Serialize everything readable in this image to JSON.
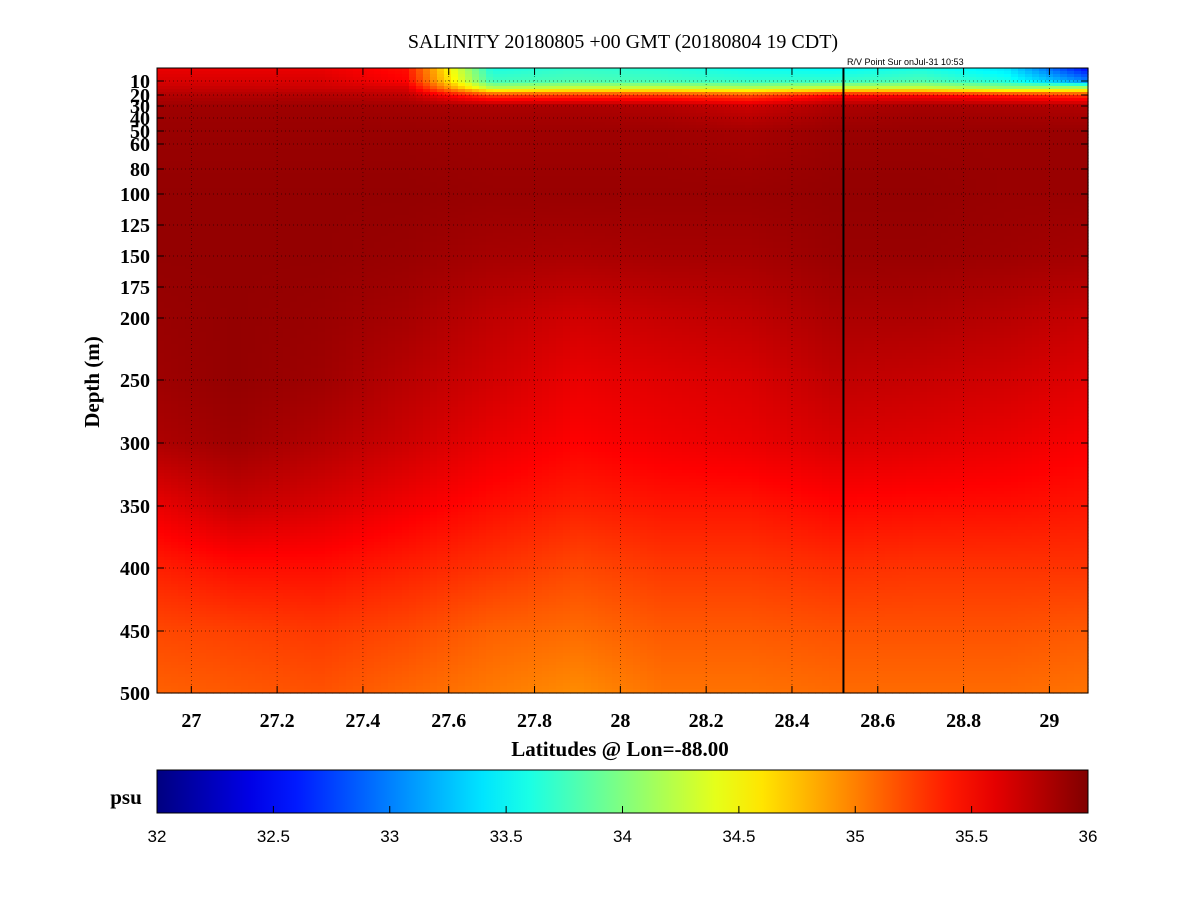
{
  "chart_data": {
    "type": "heatmap",
    "title": "SALINITY 20180805 +00 GMT (20180804 19 CDT)",
    "annotation": "R/V Point Sur onJul-31 10:53",
    "xlabel": "Latitudes @ Lon=-88.00",
    "ylabel": "Depth (m)",
    "xlim": [
      26.92,
      29.09
    ],
    "ylim": [
      5,
      500
    ],
    "y_scale": "custom non-linear (finer near surface)",
    "grid": true,
    "x_ticks": [
      27,
      27.2,
      27.4,
      27.6,
      27.8,
      28,
      28.2,
      28.4,
      28.6,
      28.8,
      29
    ],
    "x_tick_labels": [
      "27",
      "27.2",
      "27.4",
      "27.6",
      "27.8",
      "28",
      "28.2",
      "28.4",
      "28.6",
      "28.8",
      "29"
    ],
    "y_ticks": [
      10,
      20,
      30,
      40,
      50,
      60,
      80,
      100,
      125,
      150,
      175,
      200,
      250,
      300,
      350,
      400,
      450,
      500
    ],
    "y_tick_labels": [
      "10",
      "20",
      "30",
      "40",
      "50",
      "60",
      "80",
      "100",
      "125",
      "150",
      "175",
      "200",
      "250",
      "300",
      "350",
      "400",
      "450",
      "500"
    ],
    "vertical_marker_latitude": 28.52,
    "colorbar": {
      "label": "psu",
      "range": [
        32,
        36
      ],
      "ticks": [
        32,
        32.5,
        33,
        33.5,
        34,
        34.5,
        35,
        35.5,
        36
      ],
      "tick_labels": [
        "32",
        "32.5",
        "33",
        "33.5",
        "34",
        "34.5",
        "35",
        "35.5",
        "36"
      ],
      "colormap": "jet"
    },
    "grid_lat": [
      26.92,
      27.1,
      27.3,
      27.5,
      27.7,
      27.9,
      28.1,
      28.3,
      28.5,
      28.7,
      28.9,
      29.09
    ],
    "grid_depth": [
      5,
      10,
      15,
      20,
      30,
      50,
      100,
      150,
      200,
      250,
      300,
      350,
      400,
      450,
      500
    ],
    "salinity": [
      [
        35.58,
        35.58,
        35.58,
        35.45,
        33.6,
        33.7,
        33.65,
        33.55,
        33.5,
        33.6,
        33.4,
        32.5
      ],
      [
        35.65,
        35.65,
        35.65,
        35.5,
        33.75,
        33.8,
        33.75,
        33.7,
        33.7,
        33.8,
        33.6,
        33.0
      ],
      [
        35.72,
        35.72,
        35.7,
        35.65,
        34.2,
        34.3,
        34.3,
        34.2,
        34.3,
        34.3,
        34.1,
        34.2
      ],
      [
        35.8,
        35.8,
        35.8,
        35.75,
        35.25,
        35.3,
        35.3,
        35.2,
        35.5,
        35.5,
        35.4,
        35.3
      ],
      [
        35.88,
        35.88,
        35.88,
        35.86,
        35.83,
        35.83,
        35.8,
        35.7,
        35.82,
        35.85,
        35.83,
        35.8
      ],
      [
        35.9,
        35.9,
        35.9,
        35.9,
        35.88,
        35.88,
        35.88,
        35.85,
        35.9,
        35.9,
        35.9,
        35.9
      ],
      [
        35.92,
        35.92,
        35.92,
        35.92,
        35.9,
        35.9,
        35.9,
        35.9,
        35.92,
        35.92,
        35.9,
        35.9
      ],
      [
        35.92,
        35.92,
        35.92,
        35.9,
        35.85,
        35.83,
        35.85,
        35.85,
        35.9,
        35.9,
        35.88,
        35.85
      ],
      [
        35.9,
        35.92,
        35.9,
        35.85,
        35.75,
        35.68,
        35.72,
        35.75,
        35.83,
        35.82,
        35.78,
        35.72
      ],
      [
        35.88,
        35.92,
        35.88,
        35.78,
        35.68,
        35.58,
        35.62,
        35.65,
        35.75,
        35.72,
        35.68,
        35.62
      ],
      [
        35.82,
        35.88,
        35.8,
        35.7,
        35.58,
        35.5,
        35.55,
        35.58,
        35.65,
        35.62,
        35.58,
        35.52
      ],
      [
        35.58,
        35.72,
        35.65,
        35.55,
        35.45,
        35.38,
        35.42,
        35.42,
        35.48,
        35.46,
        35.45,
        35.42
      ],
      [
        35.38,
        35.45,
        35.45,
        35.38,
        35.3,
        35.22,
        35.28,
        35.28,
        35.32,
        35.3,
        35.3,
        35.3
      ],
      [
        35.22,
        35.25,
        35.28,
        35.22,
        35.12,
        35.08,
        35.15,
        35.15,
        35.18,
        35.18,
        35.18,
        35.15
      ],
      [
        35.12,
        35.15,
        35.18,
        35.1,
        35.02,
        34.95,
        35.05,
        35.05,
        35.08,
        35.08,
        35.08,
        35.05
      ]
    ]
  }
}
